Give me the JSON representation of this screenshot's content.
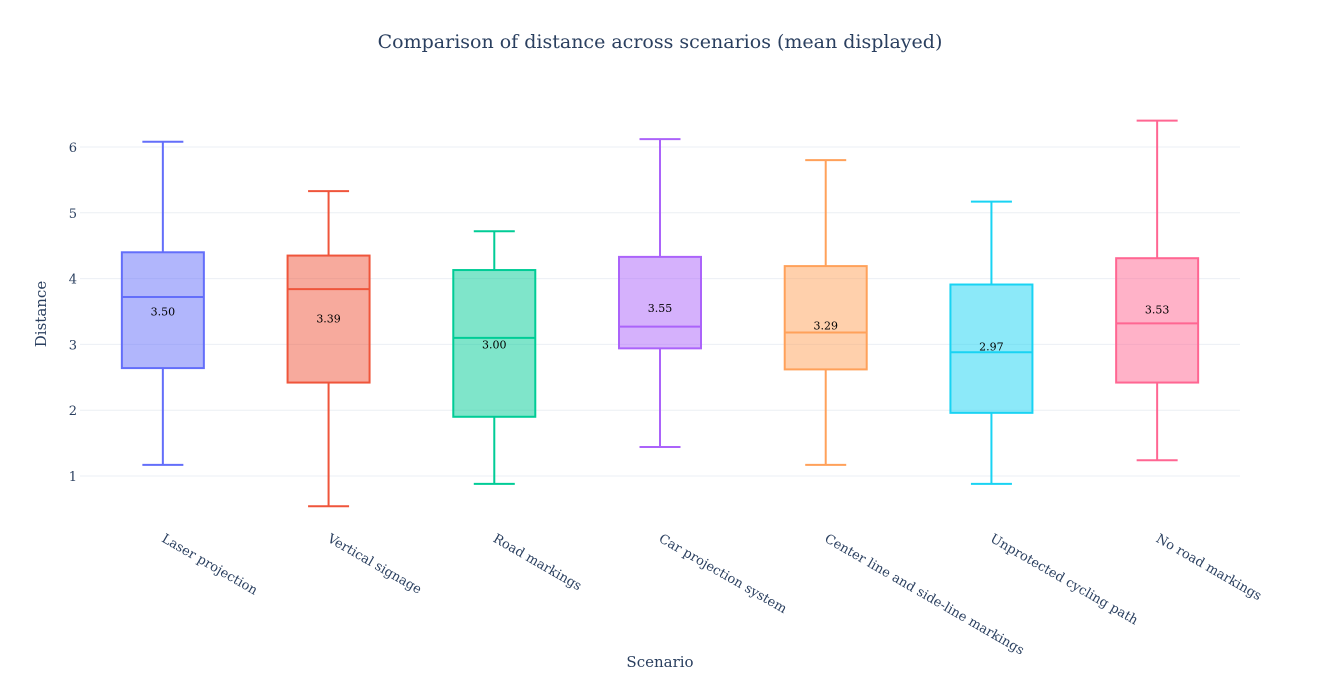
{
  "chart_data": {
    "type": "box",
    "title": "Comparison of distance across scenarios (mean displayed)",
    "xlabel": "Scenario",
    "ylabel": "Distance",
    "ylim": [
      0.5,
      7.1
    ],
    "yticks": [
      1,
      2,
      3,
      4,
      5,
      6
    ],
    "grid": true,
    "legend": "none",
    "categories": [
      "Laser projection",
      "Vertical signage",
      "Road markings",
      "Car projection system",
      "Center line and side-line markings",
      "Unprotected cycling path",
      "No road markings"
    ],
    "series": [
      {
        "category": "Laser projection",
        "color": "#636efa",
        "min": 1.17,
        "q1": 2.64,
        "median": 3.72,
        "q3": 4.4,
        "max": 6.08,
        "mean": 3.5,
        "mean_label": "3.50"
      },
      {
        "category": "Vertical signage",
        "color": "#ef553b",
        "min": 0.54,
        "q1": 2.42,
        "median": 3.84,
        "q3": 4.35,
        "max": 5.33,
        "mean": 3.39,
        "mean_label": "3.39"
      },
      {
        "category": "Road markings",
        "color": "#00cc96",
        "min": 0.88,
        "q1": 1.9,
        "median": 3.1,
        "q3": 4.13,
        "max": 4.72,
        "mean": 3.0,
        "mean_label": "3.00"
      },
      {
        "category": "Car projection system",
        "color": "#ab63fa",
        "min": 1.44,
        "q1": 2.94,
        "median": 3.27,
        "q3": 4.33,
        "max": 6.12,
        "mean": 3.55,
        "mean_label": "3.55"
      },
      {
        "category": "Center line and side-line markings",
        "color": "#ffa15a",
        "min": 1.17,
        "q1": 2.62,
        "median": 3.18,
        "q3": 4.19,
        "max": 5.8,
        "mean": 3.29,
        "mean_label": "3.29"
      },
      {
        "category": "Unprotected cycling path",
        "color": "#19d3f3",
        "min": 0.88,
        "q1": 1.96,
        "median": 2.88,
        "q3": 3.91,
        "max": 5.17,
        "mean": 2.97,
        "mean_label": "2.97"
      },
      {
        "category": "No road markings",
        "color": "#ff6692",
        "min": 1.24,
        "q1": 2.42,
        "median": 3.32,
        "q3": 4.31,
        "max": 6.4,
        "mean": 3.53,
        "mean_label": "3.53"
      }
    ]
  }
}
